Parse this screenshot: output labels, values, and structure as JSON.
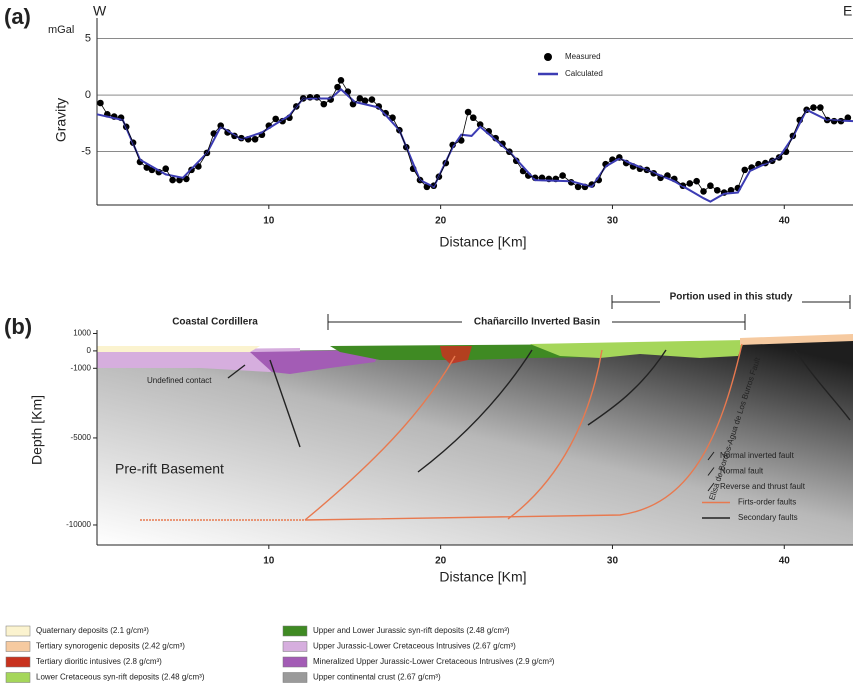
{
  "chart_data": [
    {
      "type": "scatter",
      "panel_label": "(a)",
      "y_unit": "mGal",
      "west": "W",
      "east": "E",
      "ylabel": "Gravity",
      "xlabel": "Distance [Km]",
      "xlim": [
        0,
        44
      ],
      "ylim": [
        -9.7,
        6.8
      ],
      "xticks": [
        10,
        20,
        30,
        40
      ],
      "yticks": [
        5,
        0,
        -5
      ],
      "grid": true,
      "series": [
        {
          "name": "Measured",
          "color": "#000000",
          "x": [
            0.2,
            0.6,
            1.0,
            1.4,
            1.7,
            2.1,
            2.5,
            2.9,
            3.2,
            3.6,
            4.0,
            4.4,
            4.8,
            5.2,
            5.5,
            5.9,
            6.4,
            6.8,
            7.2,
            7.6,
            8.0,
            8.4,
            8.8,
            9.2,
            9.6,
            10.0,
            10.4,
            10.8,
            11.2,
            11.6,
            12.0,
            12.4,
            12.8,
            13.2,
            13.6,
            14.0,
            14.2,
            14.6,
            14.9,
            15.3,
            15.6,
            16.0,
            16.4,
            16.8,
            17.2,
            17.6,
            18.0,
            18.4,
            18.8,
            19.2,
            19.6,
            19.9,
            20.3,
            20.7,
            21.2,
            21.6,
            21.9,
            22.3,
            22.8,
            23.2,
            23.6,
            24.0,
            24.4,
            24.8,
            25.1,
            25.5,
            25.9,
            26.3,
            26.7,
            27.1,
            27.6,
            28.0,
            28.4,
            28.8,
            29.2,
            29.6,
            30.0,
            30.4,
            30.8,
            31.2,
            31.6,
            32.0,
            32.4,
            32.8,
            33.2,
            33.6,
            34.1,
            34.5,
            34.9,
            35.3,
            35.7,
            36.1,
            36.5,
            36.9,
            37.3,
            37.7,
            38.1,
            38.5,
            38.9,
            39.3,
            39.7,
            40.1,
            40.5,
            40.9,
            41.3,
            41.7,
            42.1,
            42.5,
            42.9,
            43.3,
            43.7
          ],
          "values": [
            -0.7,
            -1.7,
            -1.9,
            -2.0,
            -2.8,
            -4.2,
            -5.9,
            -6.4,
            -6.6,
            -6.8,
            -6.5,
            -7.5,
            -7.5,
            -7.4,
            -6.6,
            -6.3,
            -5.1,
            -3.4,
            -2.7,
            -3.3,
            -3.6,
            -3.8,
            -3.9,
            -3.9,
            -3.5,
            -2.7,
            -2.1,
            -2.3,
            -2.0,
            -1.0,
            -0.3,
            -0.2,
            -0.2,
            -0.8,
            -0.4,
            0.7,
            1.3,
            0.3,
            -0.8,
            -0.3,
            -0.5,
            -0.4,
            -1.0,
            -1.6,
            -2.0,
            -3.1,
            -4.6,
            -6.5,
            -7.5,
            -8.1,
            -8.0,
            -7.2,
            -6.0,
            -4.4,
            -4.0,
            -1.5,
            -2.0,
            -2.6,
            -3.2,
            -3.8,
            -4.3,
            -5.0,
            -5.8,
            -6.7,
            -7.1,
            -7.3,
            -7.3,
            -7.4,
            -7.4,
            -7.1,
            -7.7,
            -8.1,
            -8.1,
            -7.9,
            -7.5,
            -6.1,
            -5.7,
            -5.5,
            -6.0,
            -6.3,
            -6.5,
            -6.6,
            -6.9,
            -7.3,
            -7.1,
            -7.4,
            -8.0,
            -7.8,
            -7.6,
            -8.5,
            -8.0,
            -8.4,
            -8.6,
            -8.4,
            -8.2,
            -6.6,
            -6.4,
            -6.1,
            -6.0,
            -5.8,
            -5.5,
            -5.0,
            -3.6,
            -2.2,
            -1.3,
            -1.1,
            -1.1,
            -2.2,
            -2.3,
            -2.3,
            -2.0
          ]
        },
        {
          "name": "Calculated",
          "color": "#3c3cb4",
          "x": [
            0,
            1.5,
            2.5,
            4,
            5,
            6.4,
            7.2,
            8.4,
            9.6,
            11.2,
            12,
            13.6,
            14.2,
            15,
            16.4,
            17.6,
            18.8,
            19.6,
            20.7,
            21.2,
            21.8,
            22.3,
            24,
            25.5,
            27.6,
            28.8,
            29.6,
            30.4,
            32,
            33.6,
            35.3,
            35.7,
            36.5,
            37.3,
            38,
            39.7,
            40.5,
            41.3,
            42.5,
            44
          ],
          "values": [
            -1.7,
            -2.2,
            -5.7,
            -7.0,
            -7.3,
            -5.1,
            -2.8,
            -3.9,
            -3.3,
            -1.8,
            -0.3,
            -0.3,
            0.5,
            -0.6,
            -1.1,
            -3.1,
            -7.5,
            -8.1,
            -4.6,
            -3.5,
            -3.6,
            -2.8,
            -5.0,
            -7.5,
            -7.6,
            -8.1,
            -6.3,
            -5.6,
            -6.6,
            -7.6,
            -9.1,
            -9.4,
            -8.7,
            -8.6,
            -6.7,
            -5.5,
            -3.7,
            -1.3,
            -2.2,
            -2.3
          ]
        }
      ]
    },
    {
      "type": "cross-section",
      "panel_label": "(b)",
      "ylabel": "Depth [Km]",
      "xlabel": "Distance [Km]",
      "xlim": [
        0,
        44
      ],
      "ylim": [
        -11150,
        1200
      ],
      "xticks": [
        10,
        20,
        30,
        40
      ],
      "yticks": [
        1000,
        0,
        -1000,
        -5000,
        -10000
      ],
      "annotations": [
        "Coastal Cordillera",
        "Chañarcillo Inverted Basin",
        "Portion used in this study",
        "Undefined contact",
        "Pre-rift Basement",
        "Elisa de Bordos-Agua de Los Burros Fault"
      ],
      "faults": [
        {
          "name": "Normal inverted fault",
          "color": "#222222"
        },
        {
          "name": "Normal fault",
          "color": "#222222"
        },
        {
          "name": "Reverse and thrust fault",
          "color": "#222222"
        },
        {
          "name": "Firts-order faults",
          "color": "#e8794f"
        },
        {
          "name": "Secondary faults",
          "color": "#222222"
        }
      ],
      "units": [
        {
          "name": "Quaternary deposits (2.1 g/cm³)",
          "color": "#fbf3cf"
        },
        {
          "name": "Tertiary synorogenic deposits (2.42 g/cm³)",
          "color": "#f6caa0"
        },
        {
          "name": "Tertiary dioritic intusives (2.8 g/cm³)",
          "color": "#c8321e"
        },
        {
          "name": "Lower Cretaceous syn-rift deposits (2.48 g/cm³)",
          "color": "#a5d65a"
        },
        {
          "name": "Upper  and Lower Jurassic syn-rift deposits (2.48 g/cm³)",
          "color": "#3f8a23"
        },
        {
          "name": "Upper Jurassic-Lower Cretaceous Intrusives (2.67 g/cm³)",
          "color": "#d6aede"
        },
        {
          "name": "Mineralized Upper Jurassic-Lower Cretaceous Intrusives (2.9 g/cm³)",
          "color": "#a35cb5"
        },
        {
          "name": "Upper continental crust (2.67 g/cm³)",
          "color": "#9a9a9a"
        }
      ]
    }
  ]
}
